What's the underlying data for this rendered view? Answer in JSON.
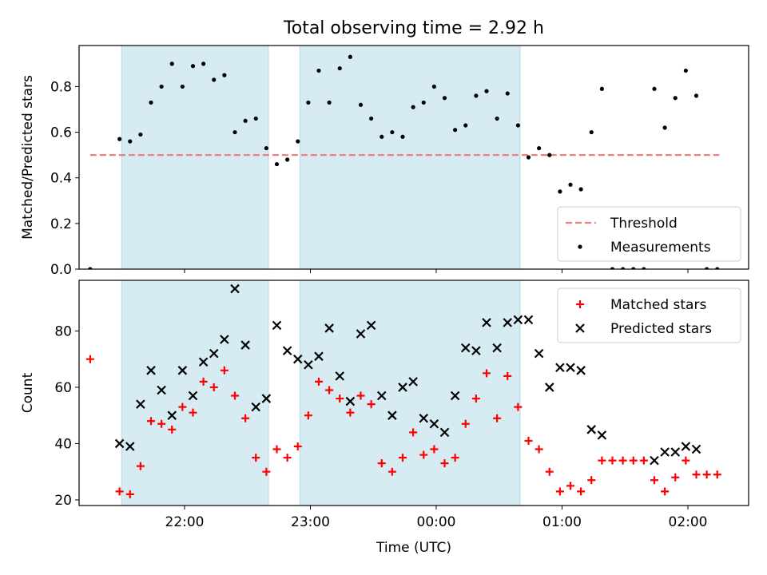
{
  "title": "Total observing time = 2.92 h",
  "chart_data": [
    {
      "type": "scatter",
      "ylabel": "Matched/Predicted stars",
      "ylim": [
        0,
        0.98
      ],
      "yticks": [
        "0.0",
        "0.2",
        "0.4",
        "0.6",
        "0.8"
      ],
      "threshold": {
        "name": "Threshold",
        "value": 0.5,
        "x_range": [
          "21:15",
          "02:15"
        ],
        "color": "#f08080"
      },
      "shaded_intervals": [
        [
          "21:30",
          "22:40"
        ],
        [
          "22:55",
          "00:40"
        ]
      ],
      "shade_color": "#add8e6",
      "legend": {
        "position": "lower right",
        "entries": [
          "Threshold",
          "Measurements"
        ]
      },
      "series": [
        {
          "name": "Measurements",
          "color": "#000000",
          "points": [
            [
              "21:15",
              0.0
            ],
            [
              "21:29",
              0.57
            ],
            [
              "21:34",
              0.56
            ],
            [
              "21:39",
              0.59
            ],
            [
              "21:44",
              0.73
            ],
            [
              "21:49",
              0.8
            ],
            [
              "21:54",
              0.9
            ],
            [
              "21:59",
              0.8
            ],
            [
              "22:04",
              0.89
            ],
            [
              "22:09",
              0.9
            ],
            [
              "22:14",
              0.83
            ],
            [
              "22:19",
              0.85
            ],
            [
              "22:24",
              0.6
            ],
            [
              "22:29",
              0.65
            ],
            [
              "22:34",
              0.66
            ],
            [
              "22:39",
              0.53
            ],
            [
              "22:44",
              0.46
            ],
            [
              "22:49",
              0.48
            ],
            [
              "22:54",
              0.56
            ],
            [
              "22:59",
              0.73
            ],
            [
              "23:04",
              0.87
            ],
            [
              "23:09",
              0.73
            ],
            [
              "23:14",
              0.88
            ],
            [
              "23:19",
              0.93
            ],
            [
              "23:24",
              0.72
            ],
            [
              "23:29",
              0.66
            ],
            [
              "23:34",
              0.58
            ],
            [
              "23:39",
              0.6
            ],
            [
              "23:44",
              0.58
            ],
            [
              "23:49",
              0.71
            ],
            [
              "23:54",
              0.73
            ],
            [
              "23:59",
              0.8
            ],
            [
              "00:04",
              0.75
            ],
            [
              "00:09",
              0.61
            ],
            [
              "00:14",
              0.63
            ],
            [
              "00:19",
              0.76
            ],
            [
              "00:24",
              0.78
            ],
            [
              "00:29",
              0.66
            ],
            [
              "00:34",
              0.77
            ],
            [
              "00:39",
              0.63
            ],
            [
              "00:44",
              0.49
            ],
            [
              "00:49",
              0.53
            ],
            [
              "00:54",
              0.5
            ],
            [
              "00:59",
              0.34
            ],
            [
              "01:04",
              0.37
            ],
            [
              "01:09",
              0.35
            ],
            [
              "01:14",
              0.6
            ],
            [
              "01:19",
              0.79
            ],
            [
              "01:24",
              0.0
            ],
            [
              "01:29",
              0.0
            ],
            [
              "01:34",
              0.0
            ],
            [
              "01:39",
              0.0
            ],
            [
              "01:44",
              0.79
            ],
            [
              "01:49",
              0.62
            ],
            [
              "01:54",
              0.75
            ],
            [
              "01:59",
              0.87
            ],
            [
              "02:04",
              0.76
            ],
            [
              "02:09",
              0.0
            ],
            [
              "02:14",
              0.0
            ]
          ]
        }
      ]
    },
    {
      "type": "scatter",
      "xlabel": "Time (UTC)",
      "ylabel": "Count",
      "ylim": [
        18,
        98
      ],
      "yticks": [
        "20",
        "40",
        "60",
        "80"
      ],
      "xticks": [
        "22:00",
        "23:00",
        "00:00",
        "01:00",
        "02:00"
      ],
      "shaded_intervals": [
        [
          "21:30",
          "22:40"
        ],
        [
          "22:55",
          "00:40"
        ]
      ],
      "shade_color": "#add8e6",
      "legend": {
        "position": "upper right",
        "entries": [
          "Matched stars",
          "Predicted stars"
        ]
      },
      "series": [
        {
          "name": "Matched stars",
          "marker": "plus",
          "color": "#ff0000",
          "points": [
            [
              "21:15",
              70
            ],
            [
              "21:29",
              23
            ],
            [
              "21:34",
              22
            ],
            [
              "21:39",
              32
            ],
            [
              "21:44",
              48
            ],
            [
              "21:49",
              47
            ],
            [
              "21:54",
              45
            ],
            [
              "21:59",
              53
            ],
            [
              "22:04",
              51
            ],
            [
              "22:09",
              62
            ],
            [
              "22:14",
              60
            ],
            [
              "22:19",
              66
            ],
            [
              "22:24",
              57
            ],
            [
              "22:29",
              49
            ],
            [
              "22:34",
              35
            ],
            [
              "22:39",
              30
            ],
            [
              "22:44",
              38
            ],
            [
              "22:49",
              35
            ],
            [
              "22:54",
              39
            ],
            [
              "22:59",
              50
            ],
            [
              "23:04",
              62
            ],
            [
              "23:09",
              59
            ],
            [
              "23:14",
              56
            ],
            [
              "23:19",
              51
            ],
            [
              "23:24",
              57
            ],
            [
              "23:29",
              54
            ],
            [
              "23:34",
              33
            ],
            [
              "23:39",
              30
            ],
            [
              "23:44",
              35
            ],
            [
              "23:49",
              44
            ],
            [
              "23:54",
              36
            ],
            [
              "23:59",
              38
            ],
            [
              "00:04",
              33
            ],
            [
              "00:09",
              35
            ],
            [
              "00:14",
              47
            ],
            [
              "00:19",
              56
            ],
            [
              "00:24",
              65
            ],
            [
              "00:29",
              49
            ],
            [
              "00:34",
              64
            ],
            [
              "00:39",
              53
            ],
            [
              "00:44",
              41
            ],
            [
              "00:49",
              38
            ],
            [
              "00:54",
              30
            ],
            [
              "00:59",
              23
            ],
            [
              "01:04",
              25
            ],
            [
              "01:09",
              23
            ],
            [
              "01:14",
              27
            ],
            [
              "01:19",
              34
            ],
            [
              "01:24",
              34
            ],
            [
              "01:29",
              34
            ],
            [
              "01:34",
              34
            ],
            [
              "01:39",
              34
            ],
            [
              "01:44",
              27
            ],
            [
              "01:49",
              23
            ],
            [
              "01:54",
              28
            ],
            [
              "01:59",
              34
            ],
            [
              "02:04",
              29
            ],
            [
              "02:09",
              29
            ],
            [
              "02:14",
              29
            ]
          ]
        },
        {
          "name": "Predicted stars",
          "marker": "x",
          "color": "#000000",
          "points": [
            [
              "21:29",
              40
            ],
            [
              "21:34",
              39
            ],
            [
              "21:39",
              54
            ],
            [
              "21:44",
              66
            ],
            [
              "21:49",
              59
            ],
            [
              "21:54",
              50
            ],
            [
              "21:59",
              66
            ],
            [
              "22:04",
              57
            ],
            [
              "22:09",
              69
            ],
            [
              "22:14",
              72
            ],
            [
              "22:19",
              77
            ],
            [
              "22:24",
              95
            ],
            [
              "22:29",
              75
            ],
            [
              "22:34",
              53
            ],
            [
              "22:39",
              56
            ],
            [
              "22:44",
              82
            ],
            [
              "22:49",
              73
            ],
            [
              "22:54",
              70
            ],
            [
              "22:59",
              68
            ],
            [
              "23:04",
              71
            ],
            [
              "23:09",
              81
            ],
            [
              "23:14",
              64
            ],
            [
              "23:19",
              55
            ],
            [
              "23:24",
              79
            ],
            [
              "23:29",
              82
            ],
            [
              "23:34",
              57
            ],
            [
              "23:39",
              50
            ],
            [
              "23:44",
              60
            ],
            [
              "23:49",
              62
            ],
            [
              "23:54",
              49
            ],
            [
              "23:59",
              47
            ],
            [
              "00:04",
              44
            ],
            [
              "00:09",
              57
            ],
            [
              "00:14",
              74
            ],
            [
              "00:19",
              73
            ],
            [
              "00:24",
              83
            ],
            [
              "00:29",
              74
            ],
            [
              "00:34",
              83
            ],
            [
              "00:39",
              84
            ],
            [
              "00:44",
              84
            ],
            [
              "00:49",
              72
            ],
            [
              "00:54",
              60
            ],
            [
              "00:59",
              67
            ],
            [
              "01:04",
              67
            ],
            [
              "01:09",
              66
            ],
            [
              "01:14",
              45
            ],
            [
              "01:19",
              43
            ],
            [
              "01:44",
              34
            ],
            [
              "01:49",
              37
            ],
            [
              "01:54",
              37
            ],
            [
              "01:59",
              39
            ],
            [
              "02:04",
              38
            ]
          ]
        }
      ]
    }
  ]
}
